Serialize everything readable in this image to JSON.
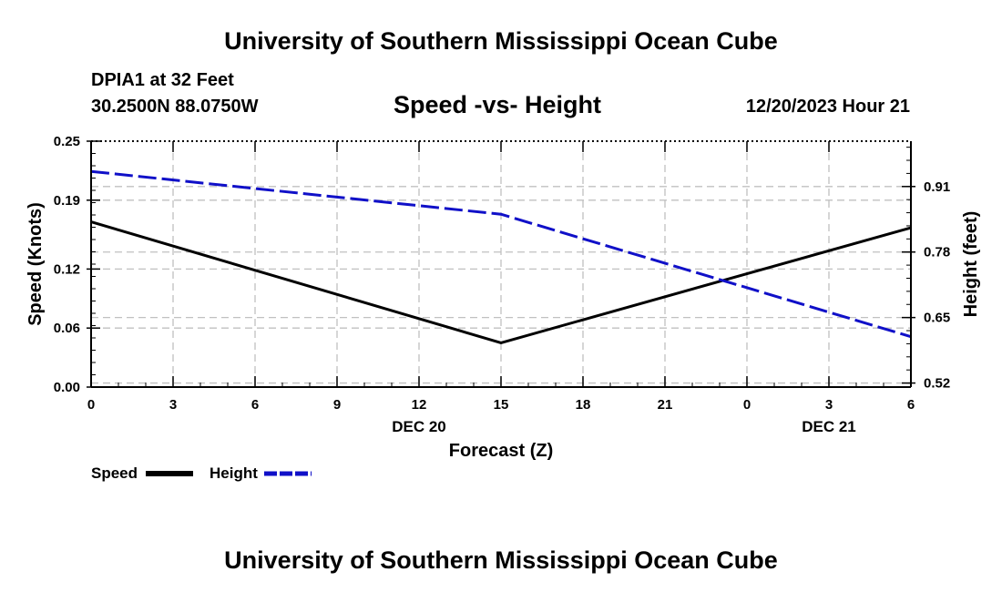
{
  "header": {
    "title": "University of Southern Mississippi Ocean Cube",
    "station": "DPIA1 at 32 Feet",
    "coords": "30.2500N  88.0750W",
    "subtitle": "Speed -vs- Height",
    "datetime": "12/20/2023 Hour 21"
  },
  "footer": {
    "title": "University of Southern Mississippi Ocean Cube"
  },
  "colors": {
    "speed": "#000000",
    "height": "#1010c8",
    "grid": "#c0c0c0"
  },
  "chart_data": {
    "type": "line",
    "title": "Speed -vs- Height",
    "xlabel": "Forecast (Z)",
    "ylabel": "Speed (Knots)",
    "y2label": "Height (feet)",
    "x": [
      0,
      3,
      6,
      9,
      12,
      15,
      18,
      21,
      24,
      27,
      30
    ],
    "xlim": [
      0,
      30
    ],
    "x_tick_labels": [
      "0",
      "3",
      "6",
      "9",
      "12",
      "15",
      "18",
      "21",
      "0",
      "3",
      "6"
    ],
    "x_date_labels": [
      {
        "x": 12,
        "label": "DEC 20"
      },
      {
        "x": 27,
        "label": "DEC 21"
      }
    ],
    "ylim": [
      0,
      0.25
    ],
    "y_ticks": [
      0.0,
      0.06,
      0.12,
      0.19,
      0.25
    ],
    "y_tick_labels": [
      "0.00",
      "0.06",
      "0.12",
      "0.19",
      "0.25"
    ],
    "y2lim": [
      0.512,
      1.0
    ],
    "y2_ticks": [
      0.52,
      0.65,
      0.78,
      0.91
    ],
    "y2_tick_labels": [
      "0.52",
      "0.65",
      "0.78",
      "0.91"
    ],
    "series": [
      {
        "name": "Speed",
        "axis": "left",
        "style": "solid",
        "x": [
          0,
          15,
          30
        ],
        "values": [
          0.168,
          0.045,
          0.162
        ]
      },
      {
        "name": "Height",
        "axis": "right",
        "style": "dashed",
        "x": [
          0,
          15,
          30
        ],
        "values": [
          0.94,
          0.855,
          0.612
        ]
      }
    ],
    "legend": [
      {
        "name": "Speed",
        "style": "solid"
      },
      {
        "name": "Height",
        "style": "dashed"
      }
    ],
    "grid": true
  }
}
